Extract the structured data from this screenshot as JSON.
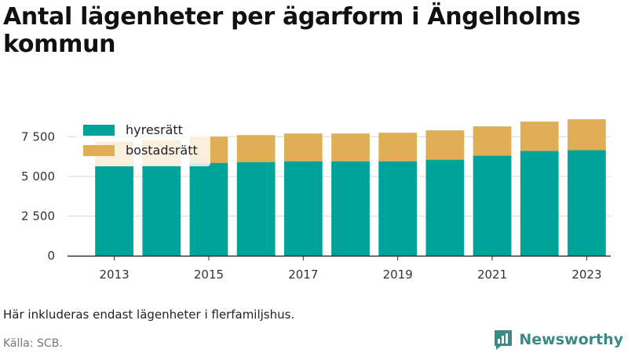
{
  "title": "Antal lägenheter per ägarform i Ängelholms kommun",
  "note": "Här inkluderas endast lägenheter i flerfamiljshus.",
  "source": "Källa: SCB.",
  "brand": {
    "name": "Newsworthy",
    "icon": "newsworthy-logo-icon",
    "color": "#3a8a86"
  },
  "colors": {
    "hyresratt": "#00a39a",
    "bostadsratt": "#dfae57",
    "grid": "#d9d9d9",
    "axis": "#333333"
  },
  "chart_data": {
    "type": "bar",
    "stacked": true,
    "title": "Antal lägenheter per ägarform i Ängelholms kommun",
    "x": [
      2013,
      2014,
      2015,
      2016,
      2017,
      2018,
      2019,
      2020,
      2021,
      2022,
      2023
    ],
    "x_ticks": [
      "2013",
      "2015",
      "2017",
      "2019",
      "2021",
      "2023"
    ],
    "y_ticks": [
      0,
      2500,
      5000,
      7500
    ],
    "y_tick_labels": [
      "0",
      "2 500",
      "5 000",
      "7 500"
    ],
    "ylim": [
      0,
      8600
    ],
    "grid": true,
    "legend_position": "top-left",
    "series": [
      {
        "name": "hyresrätt",
        "color": "#00a39a",
        "values": [
          5650,
          5700,
          5850,
          5900,
          5950,
          5950,
          5950,
          6050,
          6300,
          6600,
          6650
        ]
      },
      {
        "name": "bostadsrätt",
        "color": "#dfae57",
        "values": [
          1550,
          1600,
          1650,
          1700,
          1750,
          1750,
          1800,
          1850,
          1850,
          1850,
          1950
        ]
      }
    ]
  }
}
